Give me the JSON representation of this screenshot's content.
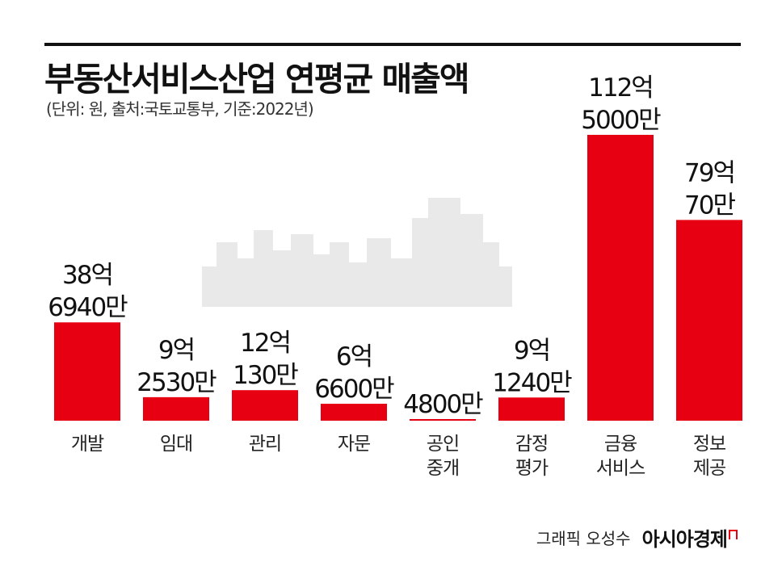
{
  "header": {
    "title": "부동산서비스산업 연평균 매출액",
    "subtitle": "(단위: 원, 출처:국토교통부, 기준:2022년)"
  },
  "footer": {
    "credit": "그래픽 오성수",
    "brand": "아시아경제"
  },
  "colors": {
    "bar": "#e60012",
    "text": "#111111",
    "skyline": "#e9e9e9"
  },
  "chart_data": {
    "type": "bar",
    "title": "부동산서비스산업 연평균 매출액",
    "categories": [
      [
        "개발"
      ],
      [
        "임대"
      ],
      [
        "관리"
      ],
      [
        "자문"
      ],
      [
        "공인",
        "중개"
      ],
      [
        "감정",
        "평가"
      ],
      [
        "금융",
        "서비스"
      ],
      [
        "정보",
        "제공"
      ]
    ],
    "values": [
      3869400000,
      925300000,
      1201300000,
      666000000,
      48000000,
      912400000,
      11250000000,
      7900700000
    ],
    "value_labels": [
      [
        "38억",
        "6940만"
      ],
      [
        "9억",
        "2530만"
      ],
      [
        "12억",
        "130만"
      ],
      [
        "6억",
        "6600만"
      ],
      [
        "4800만"
      ],
      [
        "9억",
        "1240만"
      ],
      [
        "112억",
        "5000만"
      ],
      [
        "79억",
        "70만"
      ]
    ],
    "unit": "원"
  }
}
